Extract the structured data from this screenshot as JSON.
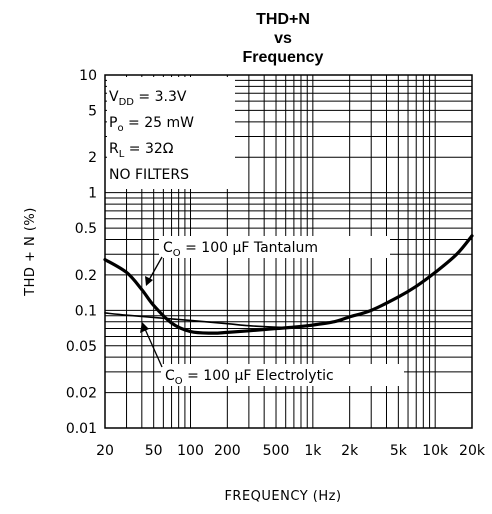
{
  "chart_data": {
    "type": "line",
    "title": [
      "THD+N",
      "vs",
      "Frequency"
    ],
    "xlabel": "FREQUENCY (Hz)",
    "ylabel": "THD + N (%)",
    "xscale": "log",
    "yscale": "log",
    "xlim": [
      20,
      20000
    ],
    "ylim": [
      0.01,
      10
    ],
    "x_ticks": [
      {
        "v": 20,
        "label": "20"
      },
      {
        "v": 50,
        "label": "50"
      },
      {
        "v": 100,
        "label": "100"
      },
      {
        "v": 200,
        "label": "200"
      },
      {
        "v": 500,
        "label": "500"
      },
      {
        "v": 1000,
        "label": "1k"
      },
      {
        "v": 2000,
        "label": "2k"
      },
      {
        "v": 5000,
        "label": "5k"
      },
      {
        "v": 10000,
        "label": "10k"
      },
      {
        "v": 20000,
        "label": "20k"
      }
    ],
    "y_ticks": [
      {
        "v": 10,
        "label": "10"
      },
      {
        "v": 5,
        "label": "5"
      },
      {
        "v": 2,
        "label": "2"
      },
      {
        "v": 1,
        "label": "1"
      },
      {
        "v": 0.5,
        "label": "0.5"
      },
      {
        "v": 0.2,
        "label": "0.2"
      },
      {
        "v": 0.1,
        "label": "0.1"
      },
      {
        "v": 0.05,
        "label": "0.05"
      },
      {
        "v": 0.02,
        "label": "0.02"
      },
      {
        "v": 0.01,
        "label": "0.01"
      }
    ],
    "grid": true,
    "conditions": [
      "V_DD = 3.3V",
      "P_o = 25 mW",
      "R_L = 32Ω",
      "NO FILTERS"
    ],
    "series": [
      {
        "name": "C_O = 100 µF Tantalum",
        "label_parts": {
          "main": "C",
          "sub": "O",
          "rest": " = 100 µF Tantalum"
        },
        "x": [
          20,
          30,
          40,
          50,
          70,
          100,
          150,
          200,
          300,
          500,
          700,
          1000,
          1500,
          2000,
          3000,
          5000,
          7000,
          10000,
          15000,
          20000
        ],
        "y": [
          0.27,
          0.21,
          0.15,
          0.11,
          0.078,
          0.066,
          0.064,
          0.065,
          0.067,
          0.07,
          0.072,
          0.075,
          0.08,
          0.088,
          0.1,
          0.13,
          0.16,
          0.21,
          0.3,
          0.43
        ]
      },
      {
        "name": "C_O = 100 µF Electrolytic",
        "label_parts": {
          "main": "C",
          "sub": "O",
          "rest": " = 100 µF Electrolytic"
        },
        "x": [
          20,
          30,
          50,
          100,
          200,
          300,
          500,
          700,
          1000
        ],
        "y": [
          0.095,
          0.091,
          0.087,
          0.082,
          0.077,
          0.074,
          0.072,
          0.072,
          0.074
        ]
      }
    ]
  }
}
